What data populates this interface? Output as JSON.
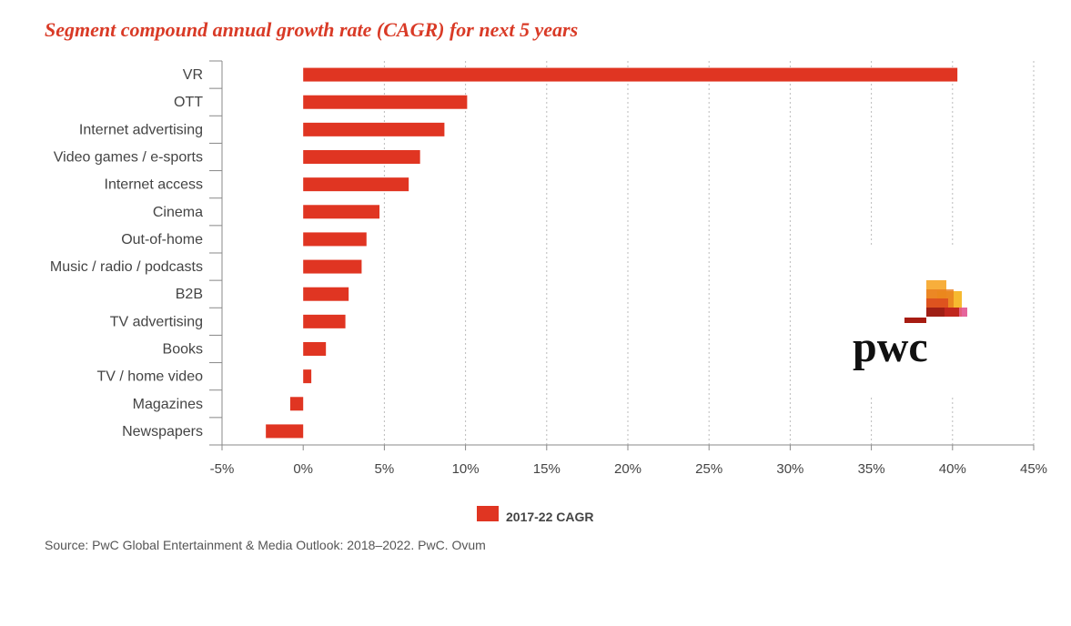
{
  "title": "Segment compound annual growth rate (CAGR) for next 5 years",
  "source": "Source: PwC Global Entertainment & Media Outlook: 2018–2022. PwC. Ovum",
  "logo": {
    "text": "pwc",
    "icon": "pwc-logo"
  },
  "colors": {
    "bar": "#e03522",
    "title": "#d93a26",
    "axis": "#888888",
    "grid": "#bbbbbb",
    "text": "#444444"
  },
  "chart_data": {
    "type": "bar",
    "orientation": "horizontal",
    "categories": [
      "VR",
      "OTT",
      "Internet advertising",
      "Video games / e-sports",
      "Internet access",
      "Cinema",
      "Out-of-home",
      "Music / radio / podcasts",
      "B2B",
      "TV advertising",
      "Books",
      "TV / home video",
      "Magazines",
      "Newspapers"
    ],
    "series": [
      {
        "name": "2017-22 CAGR",
        "values": [
          40.3,
          10.1,
          8.7,
          7.2,
          6.5,
          4.7,
          3.9,
          3.6,
          2.8,
          2.6,
          1.4,
          0.5,
          -0.8,
          -2.3
        ]
      }
    ],
    "xlim": [
      -5,
      45
    ],
    "ticks": [
      "-5%",
      "0%",
      "5%",
      "10%",
      "15%",
      "20%",
      "25%",
      "30%",
      "35%",
      "40%",
      "45%"
    ],
    "xlabel": "",
    "ylabel": "",
    "grid": "vertical dotted",
    "legend": "bottom-center"
  }
}
